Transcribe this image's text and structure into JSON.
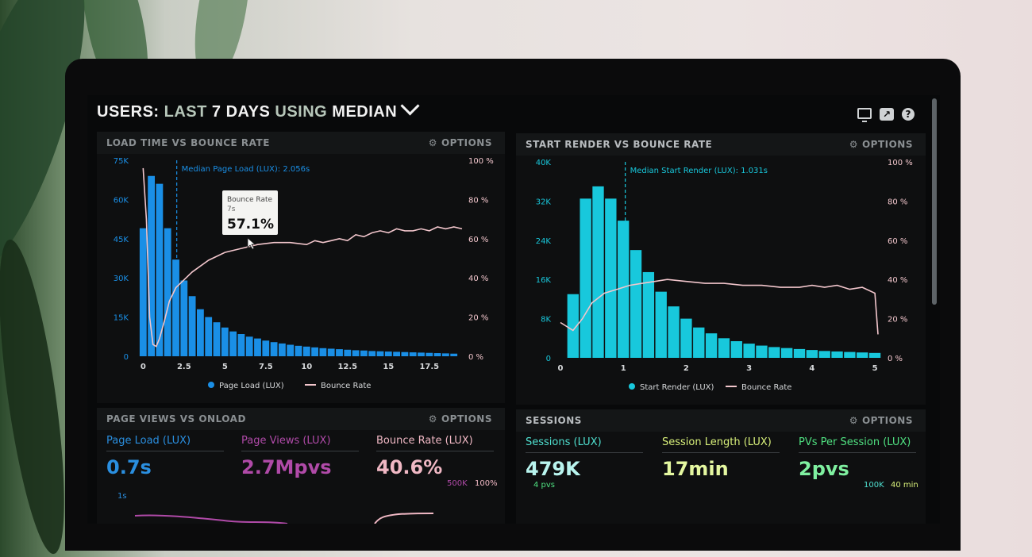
{
  "header": {
    "title_parts": [
      {
        "text": "USERS: ",
        "dim": false
      },
      {
        "text": "LAST ",
        "dim": true
      },
      {
        "text": "7 DAYS ",
        "dim": false
      },
      {
        "text": "USING ",
        "dim": true
      },
      {
        "text": "MEDIAN",
        "dim": false
      }
    ],
    "icons": [
      "monitor-icon",
      "share-icon",
      "help-icon"
    ],
    "help_glyph": "?",
    "share_glyph": "↗"
  },
  "options_label": "OPTIONS",
  "panels": {
    "load_time": {
      "title": "LOAD TIME VS BOUNCE RATE",
      "median_label": "Median Page Load (LUX): 2.056s",
      "tooltip": {
        "title": "Bounce Rate",
        "sub": "7s",
        "value": "57.1%"
      },
      "legend": [
        "Page Load (LUX)",
        "Bounce Rate"
      ]
    },
    "start_render": {
      "title": "START RENDER VS BOUNCE RATE",
      "median_label": "Median Start Render (LUX): 1.031s",
      "legend": [
        "Start Render (LUX)",
        "Bounce Rate"
      ]
    },
    "page_views": {
      "title": "PAGE VIEWS VS ONLOAD",
      "metrics": [
        {
          "label": "Page Load (LUX)",
          "value": "0.7s",
          "color": "#2a8fe0"
        },
        {
          "label": "Page Views (LUX)",
          "value": "2.7Mpvs",
          "color": "#b04aa8"
        },
        {
          "label": "Bounce Rate (LUX)",
          "value": "40.6%",
          "color": "#f0b8c4"
        }
      ],
      "sub_labels": {
        "left": "1s",
        "mid": "500K",
        "right": "100%"
      }
    },
    "sessions": {
      "title": "SESSIONS",
      "metrics": [
        {
          "label": "Sessions (LUX)",
          "value": "479K",
          "color": "#4fe0d0"
        },
        {
          "label": "Session Length (LUX)",
          "value": "17min",
          "color": "#d8f07a"
        },
        {
          "label": "PVs Per Session (LUX)",
          "value": "2pvs",
          "color": "#4fe080"
        }
      ],
      "sub_labels": {
        "left": "4 pvs",
        "mid": "100K",
        "right": "40 min"
      }
    }
  },
  "chart_data": [
    {
      "type": "bar",
      "title": "LOAD TIME VS BOUNCE RATE",
      "x_ticks": [
        "0",
        "2.5",
        "5",
        "7.5",
        "10",
        "12.5",
        "15",
        "17.5"
      ],
      "y_ticks_left": [
        "0",
        "15K",
        "30K",
        "45K",
        "60K",
        "75K"
      ],
      "y_ticks_right": [
        "0 %",
        "20 %",
        "40 %",
        "60 %",
        "80 %",
        "100 %"
      ],
      "xlim": [
        -0.5,
        19.5
      ],
      "ylim_left": [
        0,
        75000
      ],
      "ylim_right": [
        0,
        100
      ],
      "median_x": 2.056,
      "color_bars": "#1a8fe6",
      "color_line": "#f2c6cc",
      "bars": {
        "name": "Page Load (LUX)",
        "x": [
          0,
          0.5,
          1,
          1.5,
          2,
          2.5,
          3,
          3.5,
          4,
          4.5,
          5,
          5.5,
          6,
          6.5,
          7,
          7.5,
          8,
          8.5,
          9,
          9.5,
          10,
          10.5,
          11,
          11.5,
          12,
          12.5,
          13,
          13.5,
          14,
          14.5,
          15,
          15.5,
          16,
          16.5,
          17,
          17.5,
          18,
          18.5,
          19
        ],
        "values": [
          49000,
          69000,
          66000,
          49000,
          37000,
          29000,
          23000,
          18000,
          15000,
          13000,
          11000,
          9500,
          8500,
          7500,
          6800,
          6000,
          5400,
          4900,
          4400,
          4000,
          3700,
          3400,
          3100,
          2900,
          2700,
          2500,
          2300,
          2200,
          2000,
          1900,
          1800,
          1700,
          1600,
          1500,
          1400,
          1300,
          1200,
          1100,
          1000
        ]
      },
      "line": {
        "name": "Bounce Rate",
        "x": [
          0,
          0.2,
          0.4,
          0.6,
          0.8,
          1.0,
          1.3,
          1.6,
          2.0,
          2.5,
          3.0,
          4.0,
          5.0,
          6.0,
          7.0,
          8.0,
          9.0,
          10.0,
          10.5,
          11.0,
          11.5,
          12.0,
          12.5,
          13.0,
          13.5,
          14.0,
          14.5,
          15.0,
          15.5,
          16.0,
          16.5,
          17.0,
          17.5,
          18.0,
          18.5,
          19.0,
          19.5
        ],
        "values": [
          96,
          70,
          20,
          6,
          5,
          9,
          18,
          28,
          35,
          39,
          43,
          49,
          53,
          55,
          57,
          58,
          58,
          57,
          59,
          58,
          59,
          60,
          59,
          62,
          61,
          63,
          64,
          63,
          65,
          64,
          64,
          65,
          64,
          66,
          65,
          66,
          65
        ]
      },
      "legend_position": "bottom"
    },
    {
      "type": "bar",
      "title": "START RENDER VS BOUNCE RATE",
      "x_ticks": [
        "0",
        "1",
        "2",
        "3",
        "4",
        "5"
      ],
      "y_ticks_left": [
        "0",
        "8K",
        "16K",
        "24K",
        "32K",
        "40K"
      ],
      "y_ticks_right": [
        "0 %",
        "20 %",
        "40 %",
        "60 %",
        "80 %",
        "100 %"
      ],
      "xlim": [
        -0.05,
        5.1
      ],
      "ylim_left": [
        0,
        40000
      ],
      "ylim_right": [
        0,
        100
      ],
      "median_x": 1.031,
      "color_bars": "#18c8dc",
      "color_line": "#f2c6cc",
      "bars": {
        "name": "Start Render (LUX)",
        "x": [
          0.2,
          0.4,
          0.6,
          0.8,
          1.0,
          1.2,
          1.4,
          1.6,
          1.8,
          2.0,
          2.2,
          2.4,
          2.6,
          2.8,
          3.0,
          3.2,
          3.4,
          3.6,
          3.8,
          4.0,
          4.2,
          4.4,
          4.6,
          4.8,
          5.0
        ],
        "values": [
          13000,
          32500,
          35000,
          32500,
          28000,
          22000,
          17500,
          13500,
          10500,
          8000,
          6200,
          5000,
          4000,
          3400,
          2900,
          2500,
          2200,
          2000,
          1800,
          1600,
          1400,
          1300,
          1200,
          1100,
          1000
        ]
      },
      "line": {
        "name": "Bounce Rate",
        "x": [
          0.0,
          0.2,
          0.35,
          0.5,
          0.7,
          0.9,
          1.1,
          1.3,
          1.5,
          1.7,
          2.0,
          2.3,
          2.6,
          2.9,
          3.2,
          3.5,
          3.8,
          4.0,
          4.2,
          4.4,
          4.6,
          4.8,
          5.0,
          5.05
        ],
        "values": [
          18,
          14,
          20,
          28,
          33,
          35,
          37,
          38,
          39,
          40,
          39,
          38,
          38,
          37,
          37,
          36,
          36,
          37,
          36,
          37,
          35,
          36,
          33,
          12
        ]
      },
      "legend_position": "bottom"
    }
  ]
}
